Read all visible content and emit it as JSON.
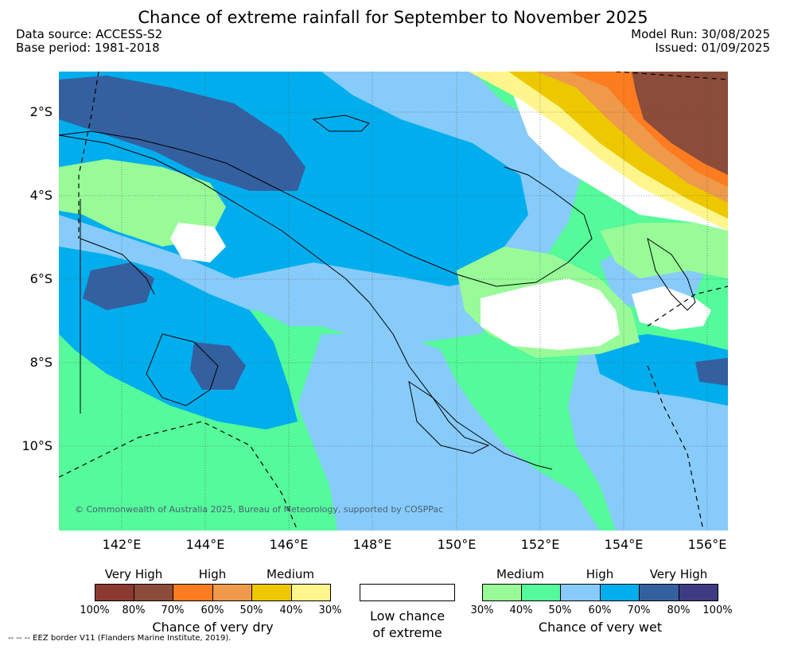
{
  "header": {
    "title": "Chance of extreme rainfall for September to November 2025",
    "data_source": "Data source: ACCESS-S2",
    "base_period": "Base period: 1981-2018",
    "model_run": "Model Run: 30/08/2025",
    "issued": "Issued: 01/09/2025"
  },
  "map": {
    "lat_labels": [
      "2°S",
      "4°S",
      "6°S",
      "8°S",
      "10°S"
    ],
    "lon_labels": [
      "142°E",
      "144°E",
      "146°E",
      "148°E",
      "150°E",
      "152°E",
      "154°E",
      "156°E"
    ],
    "copyright": "© Commonwealth of Australia 2025, Bureau of Meteorology, supported by COSPPac",
    "colors": {
      "wet_30": "#98fb98",
      "wet_40": "#55fa9a",
      "wet_50": "#87cbfa",
      "wet_60": "#00aeee",
      "wet_70": "#3460a0",
      "dry_60": "#fd7c1f",
      "dry_50": "#ee9a4a",
      "dry_40": "#edc800",
      "dry_30": "#fef68c",
      "dry_80": "#8b4c3a"
    }
  },
  "legend": {
    "dry": {
      "levels": [
        "Very High",
        "High",
        "Medium"
      ],
      "colors": [
        "#8b3a32",
        "#8b4c3a",
        "#fd7c1f",
        "#ee9a4a",
        "#edc800",
        "#fef68c"
      ],
      "ticks": [
        "100%",
        "80%",
        "70%",
        "60%",
        "50%",
        "40%",
        "30%"
      ],
      "caption": "Chance of very dry"
    },
    "low": {
      "color": "#ffffff",
      "caption_line1": "Low chance",
      "caption_line2": "of extreme"
    },
    "wet": {
      "levels": [
        "Medium",
        "High",
        "Very High"
      ],
      "colors": [
        "#98fb98",
        "#55fa9a",
        "#87cbfa",
        "#00aeee",
        "#3460a0",
        "#3d3c82"
      ],
      "ticks": [
        "30%",
        "40%",
        "50%",
        "60%",
        "70%",
        "80%",
        "100%"
      ],
      "caption": "Chance of very wet"
    }
  },
  "footer": {
    "eez_note": "--  --  -- EEZ border V11 (Flanders Marine Institute, 2019)."
  }
}
